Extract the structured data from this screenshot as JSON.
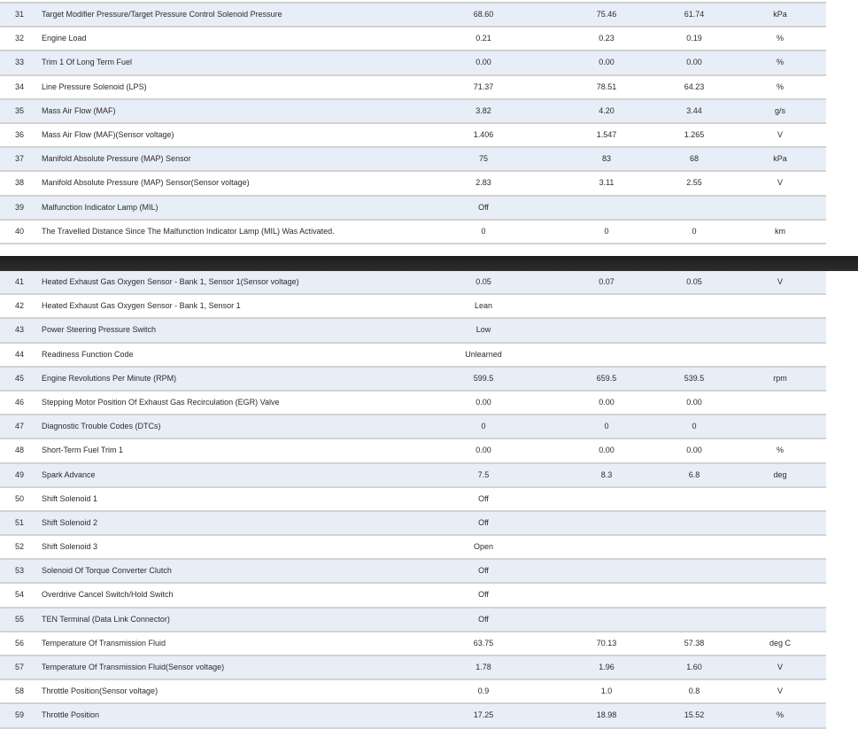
{
  "colors": {
    "row_alt": "#e8eef8",
    "divider": "#222222"
  },
  "sections": [
    {
      "rows": [
        {
          "num": "31",
          "name": "Target Modifier Pressure/Target Pressure Control Solenoid Pressure",
          "v1": "68.60",
          "v2": "75.46",
          "v3": "61.74",
          "unit": "kPa"
        },
        {
          "num": "32",
          "name": "Engine Load",
          "v1": "0.21",
          "v2": "0.23",
          "v3": "0.19",
          "unit": "%"
        },
        {
          "num": "33",
          "name": "Trim 1 Of Long Term Fuel",
          "v1": "0.00",
          "v2": "0.00",
          "v3": "0.00",
          "unit": "%"
        },
        {
          "num": "34",
          "name": "Line Pressure Solenoid (LPS)",
          "v1": "71.37",
          "v2": "78.51",
          "v3": "64.23",
          "unit": "%"
        },
        {
          "num": "35",
          "name": "Mass Air Flow (MAF)",
          "v1": "3.82",
          "v2": "4.20",
          "v3": "3.44",
          "unit": "g/s"
        },
        {
          "num": "36",
          "name": "Mass Air Flow (MAF)(Sensor voltage)",
          "v1": "1.406",
          "v2": "1.547",
          "v3": "1.265",
          "unit": "V"
        },
        {
          "num": "37",
          "name": "Manifold Absolute Pressure (MAP) Sensor",
          "v1": "75",
          "v2": "83",
          "v3": "68",
          "unit": "kPa"
        },
        {
          "num": "38",
          "name": "Manifold Absolute Pressure (MAP) Sensor(Sensor voltage)",
          "v1": "2.83",
          "v2": "3.11",
          "v3": "2.55",
          "unit": "V"
        },
        {
          "num": "39",
          "name": "Malfunction Indicator Lamp (MIL)",
          "v1": "Off",
          "v2": "",
          "v3": "",
          "unit": ""
        },
        {
          "num": "40",
          "name": "The Travelled Distance Since The Malfunction Indicator Lamp (MIL) Was Activated.",
          "v1": "0",
          "v2": "0",
          "v3": "0",
          "unit": "km"
        }
      ]
    },
    {
      "rows": [
        {
          "num": "41",
          "name": "Heated Exhaust Gas Oxygen Sensor - Bank 1, Sensor 1(Sensor voltage)",
          "v1": "0.05",
          "v2": "0.07",
          "v3": "0.05",
          "unit": "V"
        },
        {
          "num": "42",
          "name": "Heated Exhaust Gas Oxygen Sensor - Bank 1, Sensor 1",
          "v1": "Lean",
          "v2": "",
          "v3": "",
          "unit": ""
        },
        {
          "num": "43",
          "name": "Power Steering Pressure Switch",
          "v1": "Low",
          "v2": "",
          "v3": "",
          "unit": ""
        },
        {
          "num": "44",
          "name": "Readiness Function Code",
          "v1": "Unlearned",
          "v2": "",
          "v3": "",
          "unit": ""
        },
        {
          "num": "45",
          "name": "Engine Revolutions Per Minute (RPM)",
          "v1": "599.5",
          "v2": "659.5",
          "v3": "539.5",
          "unit": "rpm"
        },
        {
          "num": "46",
          "name": "Stepping Motor Position Of Exhaust Gas Recirculation (EGR) Valve",
          "v1": "0.00",
          "v2": "0.00",
          "v3": "0.00",
          "unit": ""
        },
        {
          "num": "47",
          "name": "Diagnostic Trouble Codes (DTCs)",
          "v1": "0",
          "v2": "0",
          "v3": "0",
          "unit": ""
        },
        {
          "num": "48",
          "name": "Short-Term Fuel Trim 1",
          "v1": "0.00",
          "v2": "0.00",
          "v3": "0.00",
          "unit": "%"
        },
        {
          "num": "49",
          "name": "Spark Advance",
          "v1": "7.5",
          "v2": "8.3",
          "v3": "6.8",
          "unit": "deg"
        },
        {
          "num": "50",
          "name": "Shift Solenoid 1",
          "v1": "Off",
          "v2": "",
          "v3": "",
          "unit": ""
        },
        {
          "num": "51",
          "name": "Shift Solenoid 2",
          "v1": "Off",
          "v2": "",
          "v3": "",
          "unit": ""
        },
        {
          "num": "52",
          "name": "Shift Solenoid 3",
          "v1": "Open",
          "v2": "",
          "v3": "",
          "unit": ""
        },
        {
          "num": "53",
          "name": "Solenoid Of Torque Converter Clutch",
          "v1": "Off",
          "v2": "",
          "v3": "",
          "unit": ""
        },
        {
          "num": "54",
          "name": "Overdrive Cancel Switch/Hold Switch",
          "v1": "Off",
          "v2": "",
          "v3": "",
          "unit": ""
        },
        {
          "num": "55",
          "name": "TEN Terminal (Data Link Connector)",
          "v1": "Off",
          "v2": "",
          "v3": "",
          "unit": ""
        },
        {
          "num": "56",
          "name": "Temperature Of Transmission Fluid",
          "v1": "63.75",
          "v2": "70.13",
          "v3": "57.38",
          "unit": "deg C"
        },
        {
          "num": "57",
          "name": "Temperature Of Transmission Fluid(Sensor voltage)",
          "v1": "1.78",
          "v2": "1.96",
          "v3": "1.60",
          "unit": "V"
        },
        {
          "num": "58",
          "name": "Throttle Position(Sensor voltage)",
          "v1": "0.9",
          "v2": "1.0",
          "v3": "0.8",
          "unit": "V"
        },
        {
          "num": "59",
          "name": "Throttle Position",
          "v1": "17.25",
          "v2": "18.98",
          "v3": "15.52",
          "unit": "%"
        }
      ]
    }
  ]
}
